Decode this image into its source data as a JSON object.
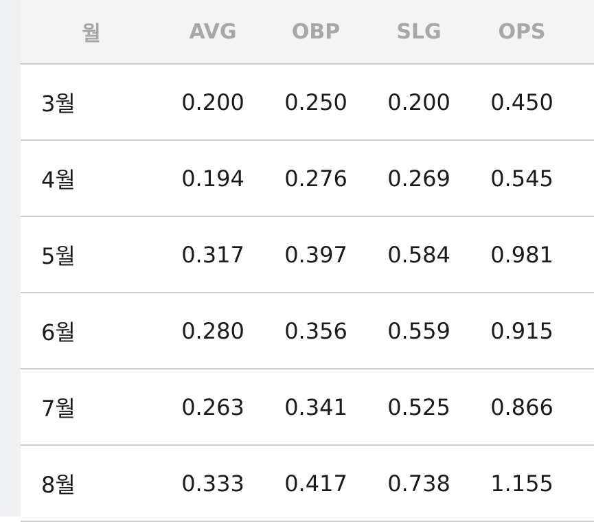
{
  "table": {
    "header": [
      "월",
      "AVG",
      "OBP",
      "SLG",
      "OPS"
    ],
    "rows": [
      [
        "3월",
        "0.200",
        "0.250",
        "0.200",
        "0.450"
      ],
      [
        "4월",
        "0.194",
        "0.276",
        "0.269",
        "0.545"
      ],
      [
        "5월",
        "0.317",
        "0.397",
        "0.584",
        "0.981"
      ],
      [
        "6월",
        "0.280",
        "0.356",
        "0.559",
        "0.915"
      ],
      [
        "7월",
        "0.263",
        "0.341",
        "0.525",
        "0.866"
      ],
      [
        "8월",
        "0.333",
        "0.417",
        "0.738",
        "1.155"
      ]
    ]
  }
}
